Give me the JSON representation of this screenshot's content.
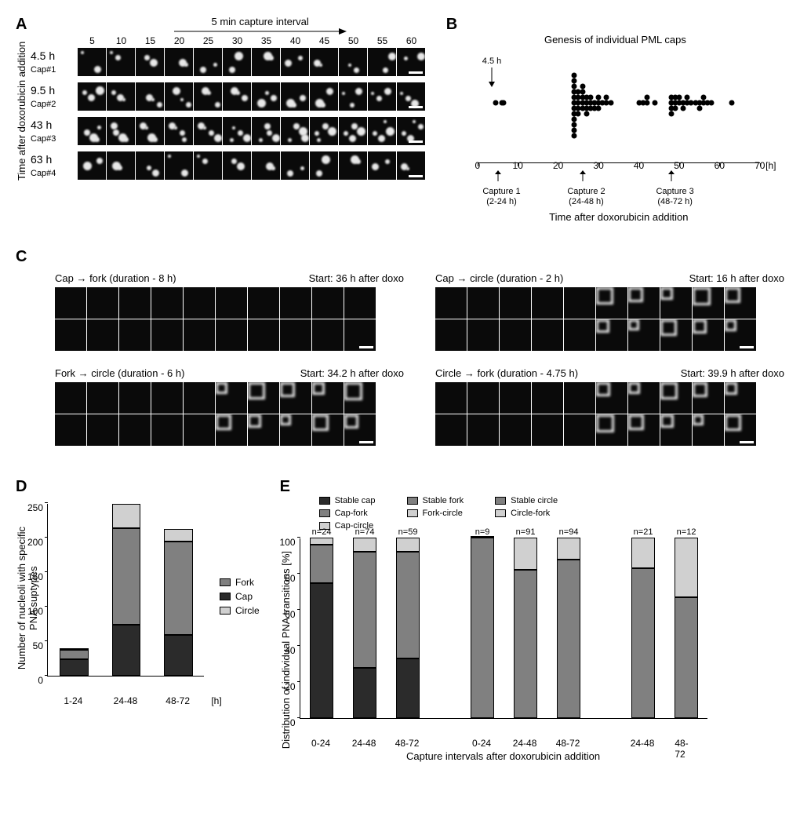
{
  "panelA": {
    "label": "A",
    "ylabel": "Time after doxorubicin addition",
    "arrow_label": "5 min capture interval",
    "timepoints": [
      "5",
      "10",
      "15",
      "20",
      "25",
      "30",
      "35",
      "40",
      "45",
      "50",
      "55",
      "60"
    ],
    "rows": [
      {
        "time": "4.5 h",
        "cap": "Cap#1"
      },
      {
        "time": "9.5 h",
        "cap": "Cap#2"
      },
      {
        "time": "43 h",
        "cap": "Cap#3"
      },
      {
        "time": "63 h",
        "cap": "Cap#4"
      }
    ]
  },
  "panelB": {
    "label": "B",
    "title": "Genesis of individual  PML caps",
    "annotation": "4.5 h",
    "xlabel": "Time after doxorubicin addition",
    "unit": "[h]",
    "xlim": [
      0,
      70
    ],
    "xticks": [
      0,
      10,
      20,
      30,
      40,
      50,
      60,
      70
    ],
    "captures": [
      {
        "label": "Capture 1\n(2-24 h)",
        "x": 5
      },
      {
        "label": "Capture 2\n(24-48 h)",
        "x": 26
      },
      {
        "label": "Capture 3\n(48-72 h)",
        "x": 48
      }
    ],
    "points": [
      [
        4.5,
        0
      ],
      [
        6,
        0
      ],
      [
        6.5,
        0
      ],
      [
        24,
        -5
      ],
      [
        24,
        -4
      ],
      [
        24,
        -3
      ],
      [
        24,
        -2
      ],
      [
        24,
        -1
      ],
      [
        24,
        0
      ],
      [
        24,
        1
      ],
      [
        24,
        2
      ],
      [
        24,
        3
      ],
      [
        24,
        4
      ],
      [
        24,
        5
      ],
      [
        24,
        6
      ],
      [
        25,
        -2
      ],
      [
        25,
        -1
      ],
      [
        25,
        0
      ],
      [
        25,
        1
      ],
      [
        25,
        2
      ],
      [
        26,
        -3
      ],
      [
        26,
        -2
      ],
      [
        26,
        -1
      ],
      [
        26,
        0
      ],
      [
        26,
        1
      ],
      [
        27,
        -1
      ],
      [
        27,
        0
      ],
      [
        27,
        1
      ],
      [
        27,
        2
      ],
      [
        28,
        0
      ],
      [
        28,
        1
      ],
      [
        28,
        -1
      ],
      [
        29,
        0
      ],
      [
        29,
        1
      ],
      [
        30,
        0
      ],
      [
        30,
        1
      ],
      [
        30,
        -1
      ],
      [
        31,
        0
      ],
      [
        32,
        0
      ],
      [
        32,
        -1
      ],
      [
        33,
        0
      ],
      [
        40,
        0
      ],
      [
        41,
        0
      ],
      [
        42,
        0
      ],
      [
        42,
        -1
      ],
      [
        44,
        0
      ],
      [
        48,
        0
      ],
      [
        48,
        0
      ],
      [
        48,
        -1
      ],
      [
        48,
        1
      ],
      [
        48,
        2
      ],
      [
        49,
        0
      ],
      [
        49,
        -1
      ],
      [
        49,
        1
      ],
      [
        50,
        -1
      ],
      [
        50,
        0
      ],
      [
        51,
        0
      ],
      [
        51,
        1
      ],
      [
        52,
        0
      ],
      [
        52,
        -1
      ],
      [
        53,
        0
      ],
      [
        54,
        0
      ],
      [
        55,
        0
      ],
      [
        55,
        1
      ],
      [
        56,
        0
      ],
      [
        56,
        -1
      ],
      [
        57,
        0
      ],
      [
        58,
        0
      ],
      [
        63,
        0
      ]
    ]
  },
  "panelC": {
    "label": "C",
    "subs": [
      {
        "title_left": "Cap → fork (duration - 8 h)",
        "title_right": "Start:  36 h after doxo",
        "cols": 10
      },
      {
        "title_left": "Cap → circle (duration - 2 h)",
        "title_right": "Start: 16 h after doxo",
        "cols": 10
      },
      {
        "title_left": "Fork → circle (duration - 6 h)",
        "title_right": "Start:  34.2 h after doxo",
        "cols": 10
      },
      {
        "title_left": "Circle → fork (duration - 4.75 h)",
        "title_right": "Start: 39.9 h after doxo",
        "cols": 10
      }
    ]
  },
  "panelD": {
    "label": "D",
    "ylabel": "Number of nucleoli with specific\nPNA suptypes",
    "ylim": [
      0,
      250
    ],
    "ytick_step": 50,
    "bar_width": 0.55,
    "categories": [
      "1-24",
      "24-48",
      "48-72"
    ],
    "unit": "[h]",
    "series": [
      {
        "name": "Cap",
        "color": "#2b2b2b",
        "values": [
          24,
          74,
          59
        ]
      },
      {
        "name": "Fork",
        "color": "#808080",
        "values": [
          14,
          140,
          135
        ]
      },
      {
        "name": "Circle",
        "color": "#d0d0d0",
        "values": [
          2,
          35,
          18
        ]
      }
    ],
    "legend_order": [
      "Fork",
      "Cap",
      "Circle"
    ]
  },
  "panelE": {
    "label": "E",
    "ylabel": "Distribution of individual PNA transitions  [%]",
    "xlabel": "Capture intervals after doxorubicin addition",
    "ylim": [
      0,
      100
    ],
    "ytick_step": 20,
    "bar_width": 0.55,
    "groups": [
      {
        "legend": [
          {
            "name": "Stable cap",
            "color": "#2b2b2b"
          },
          {
            "name": "Cap-fork",
            "color": "#808080"
          },
          {
            "name": "Cap-circle",
            "color": "#d0d0d0"
          }
        ],
        "bars": [
          {
            "cat": "0-24",
            "n": "n=24",
            "stack": [
              75,
              21,
              4
            ]
          },
          {
            "cat": "24-48",
            "n": "n=74",
            "stack": [
              28,
              64,
              8
            ]
          },
          {
            "cat": "48-72",
            "n": "n=59",
            "stack": [
              33,
              59,
              8
            ]
          }
        ]
      },
      {
        "legend": [
          {
            "name": "Stable fork",
            "color": "#808080"
          },
          {
            "name": "Fork-circle",
            "color": "#d0d0d0"
          }
        ],
        "bars": [
          {
            "cat": "0-24",
            "n": "n=9",
            "stack": [
              100,
              0
            ]
          },
          {
            "cat": "24-48",
            "n": "n=91",
            "stack": [
              82,
              18
            ]
          },
          {
            "cat": "48-72",
            "n": "n=94",
            "stack": [
              88,
              12
            ]
          }
        ]
      },
      {
        "legend": [
          {
            "name": "Stable circle",
            "color": "#808080"
          },
          {
            "name": "Circle-fork",
            "color": "#d0d0d0"
          }
        ],
        "bars": [
          {
            "cat": "24-48",
            "n": "n=21",
            "stack": [
              83,
              17
            ]
          },
          {
            "cat": "48-72",
            "n": "n=12",
            "stack": [
              67,
              33
            ]
          }
        ]
      }
    ]
  },
  "colors": {
    "background": "#ffffff",
    "cell_bg": "#0a0a0a",
    "scatter": "#000000"
  }
}
